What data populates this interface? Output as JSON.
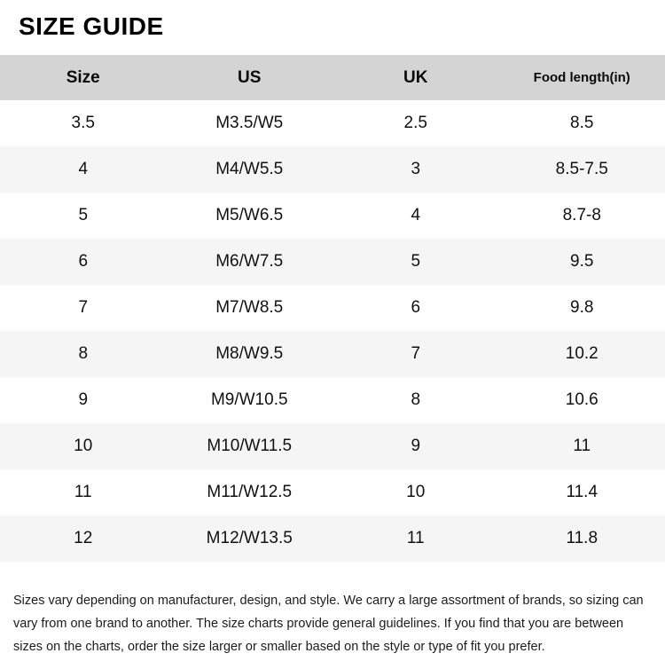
{
  "page": {
    "title": "SIZE GUIDE"
  },
  "table": {
    "columns": [
      "Size",
      "US",
      "UK",
      "Food length(in)"
    ],
    "rows": [
      {
        "size": "3.5",
        "us": "M3.5/W5",
        "uk": "2.5",
        "length": "8.5"
      },
      {
        "size": "4",
        "us": "M4/W5.5",
        "uk": "3",
        "length": "8.5-7.5"
      },
      {
        "size": "5",
        "us": "M5/W6.5",
        "uk": "4",
        "length": "8.7-8"
      },
      {
        "size": "6",
        "us": "M6/W7.5",
        "uk": "5",
        "length": "9.5"
      },
      {
        "size": "7",
        "us": "M7/W8.5",
        "uk": "6",
        "length": "9.8"
      },
      {
        "size": "8",
        "us": "M8/W9.5",
        "uk": "7",
        "length": "10.2"
      },
      {
        "size": "9",
        "us": "M9/W10.5",
        "uk": "8",
        "length": "10.6"
      },
      {
        "size": "10",
        "us": "M10/W11.5",
        "uk": "9",
        "length": "11"
      },
      {
        "size": "11",
        "us": "M11/W12.5",
        "uk": "10",
        "length": "11.4"
      },
      {
        "size": "12",
        "us": "M12/W13.5",
        "uk": "11",
        "length": "11.8"
      }
    ]
  },
  "footer": {
    "text": "Sizes vary depending on manufacturer, design, and style. We carry a large assortment of brands, so sizing can vary from one brand to another. The size charts provide general guidelines. If you find that you are between sizes on the charts, order the size larger or smaller based on the style or type of fit you prefer."
  },
  "colors": {
    "header_bg": "#d4d4d4",
    "row_alt_bg": "#f5f5f5",
    "text": "#111111"
  }
}
